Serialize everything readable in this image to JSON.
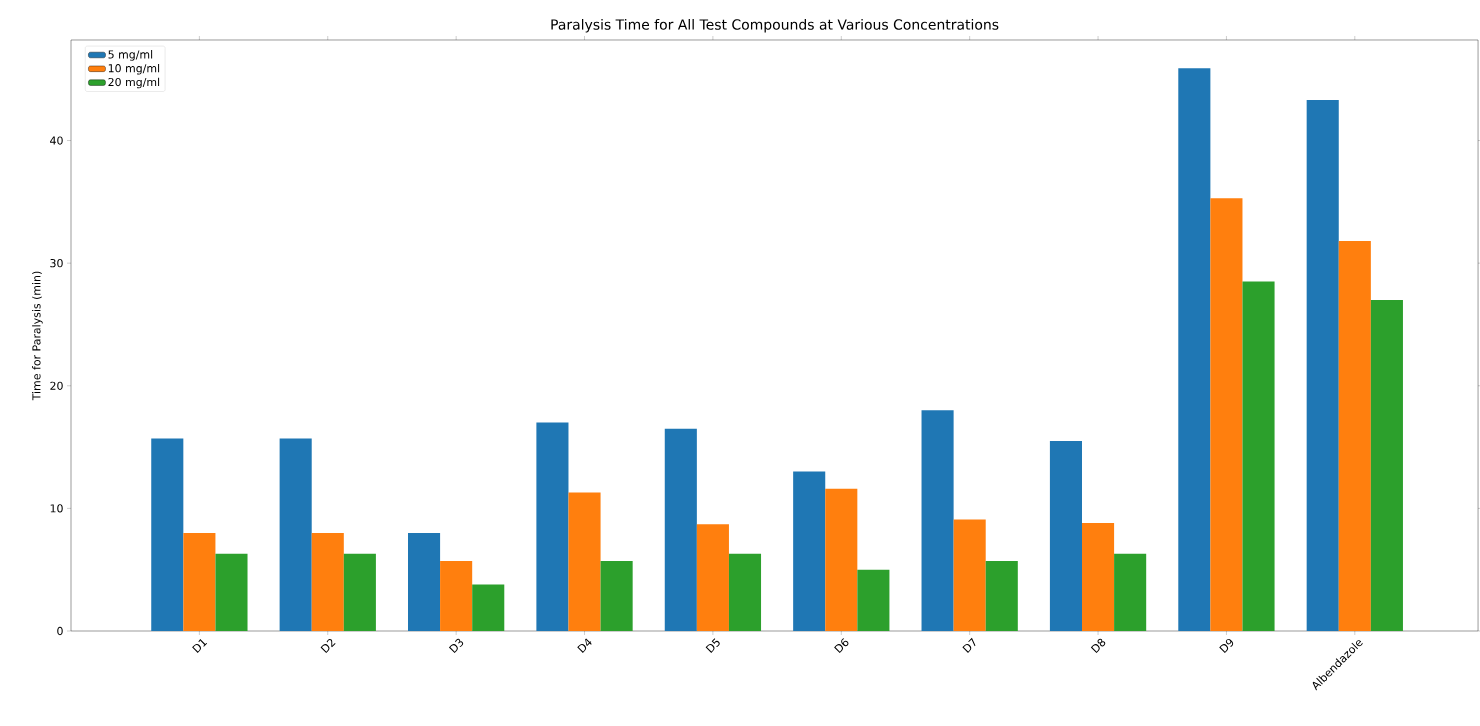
{
  "chart_data": {
    "type": "bar",
    "title": "Paralysis Time for All Test Compounds at Various Concentrations",
    "ylabel": "Time for Paralysis (min)",
    "categories": [
      "D1",
      "D2",
      "D3",
      "D4",
      "D5",
      "D6",
      "D7",
      "D8",
      "D9",
      "Albendazole"
    ],
    "series": [
      {
        "name": "5 mg/ml",
        "color": "#1f77b4",
        "values": [
          15.7,
          15.7,
          8.0,
          17.0,
          16.5,
          13.0,
          18.0,
          15.5,
          45.9,
          43.3
        ]
      },
      {
        "name": "10 mg/ml",
        "color": "#ff7f0e",
        "values": [
          8.0,
          8.0,
          5.7,
          11.3,
          8.7,
          11.6,
          9.1,
          8.8,
          35.3,
          31.8
        ]
      },
      {
        "name": "20 mg/ml",
        "color": "#2ca02c",
        "values": [
          6.3,
          6.3,
          3.8,
          5.7,
          6.3,
          5.0,
          5.7,
          6.3,
          28.5,
          27.0
        ]
      }
    ],
    "ylim": [
      0,
      48.2
    ],
    "yticks": [
      0,
      10,
      20,
      30,
      40
    ],
    "legend": "top left",
    "grid": false
  }
}
